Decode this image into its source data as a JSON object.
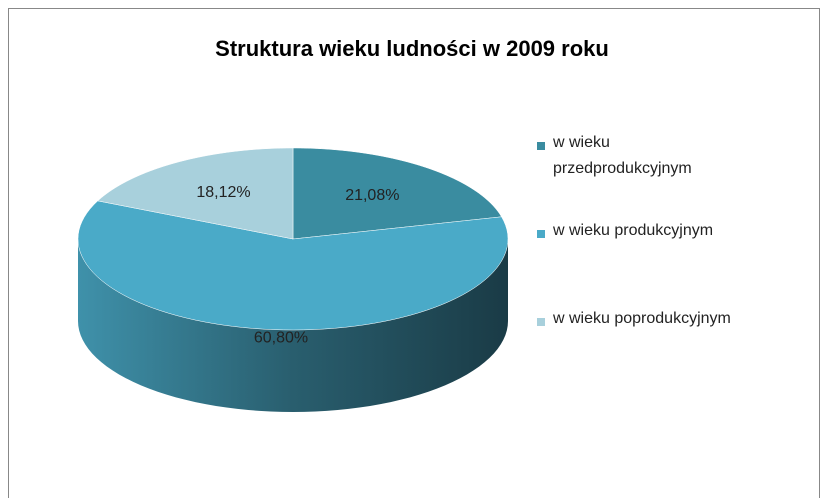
{
  "chart_data": {
    "type": "pie",
    "title": "Struktura wieku ludności w 2009 roku",
    "categories": [
      "w wieku przedprodukcyjnym",
      "w wieku produkcyjnym",
      "w wieku poprodukcyjnym"
    ],
    "values": [
      21.08,
      60.8,
      18.12
    ],
    "value_labels": [
      "21,08%",
      "60,80%",
      "18,12%"
    ],
    "colors": [
      "#3a8ca0",
      "#4aaac8",
      "#a8d0dc"
    ],
    "legend": "right"
  }
}
